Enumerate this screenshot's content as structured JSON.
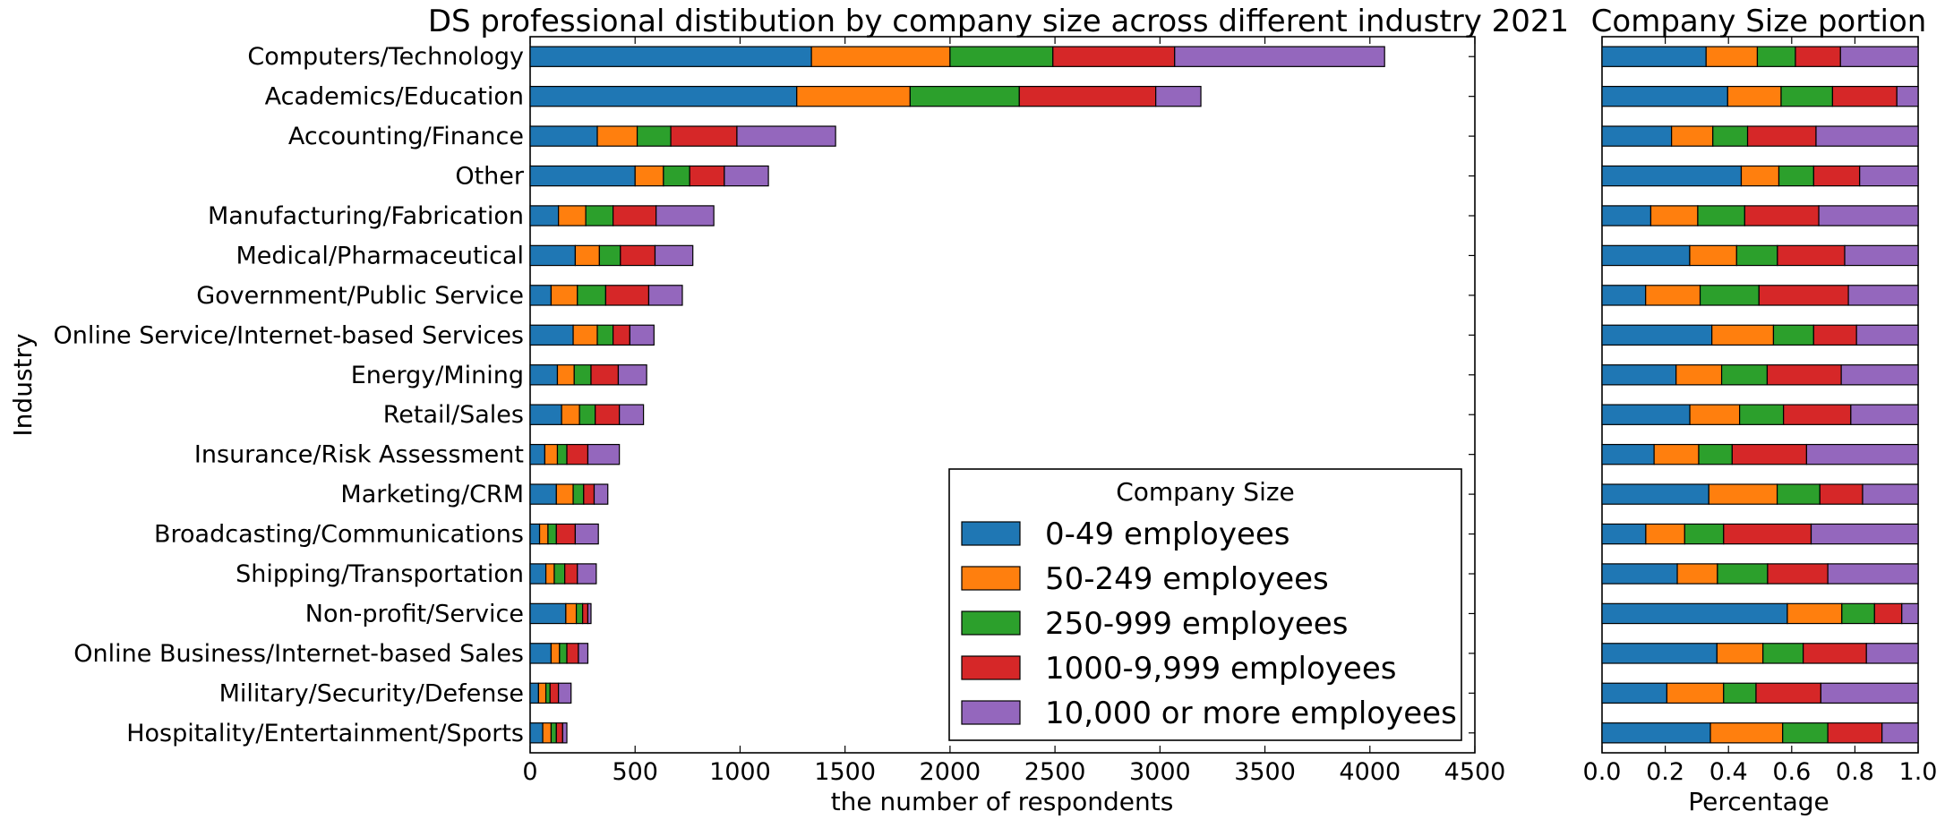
{
  "chart_data": [
    {
      "type": "bar",
      "orientation": "horizontal",
      "stacked": true,
      "title": "DS professional distibution by company size across different industry 2021",
      "xlabel": "the number of respondents",
      "ylabel": "Industry",
      "xlim": [
        0,
        4500
      ],
      "xticks": [
        "0",
        "500",
        "1000",
        "1500",
        "2000",
        "2500",
        "3000",
        "3500",
        "4000",
        "4500"
      ],
      "grid": false,
      "legend": {
        "title": "Company Size",
        "placement": "lower-right"
      },
      "categories": [
        "Computers/Technology",
        "Academics/Education",
        "Accounting/Finance",
        "Other",
        "Manufacturing/Fabrication",
        "Medical/Pharmaceutical",
        "Government/Public Service",
        "Online Service/Internet-based Services",
        "Energy/Mining",
        "Retail/Sales",
        "Insurance/Risk Assessment",
        "Marketing/CRM",
        "Broadcasting/Communications",
        "Shipping/Transportation",
        "Non-profit/Service",
        "Online Business/Internet-based Sales",
        "Military/Security/Defense",
        "Hospitality/Entertainment/Sports"
      ],
      "series": [
        {
          "name": "0-49 employees",
          "color": "#1f77b4",
          "values": [
            1340,
            1270,
            320,
            500,
            135,
            215,
            100,
            205,
            130,
            150,
            70,
            125,
            45,
            75,
            170,
            100,
            40,
            60
          ]
        },
        {
          "name": "50-249 employees",
          "color": "#ff7f0e",
          "values": [
            660,
            540,
            190,
            135,
            130,
            115,
            125,
            115,
            80,
            85,
            60,
            80,
            40,
            40,
            50,
            40,
            35,
            40
          ]
        },
        {
          "name": "250-999 employees",
          "color": "#2ca02c",
          "values": [
            490,
            520,
            160,
            125,
            130,
            100,
            135,
            75,
            80,
            75,
            45,
            50,
            40,
            50,
            30,
            35,
            20,
            25
          ]
        },
        {
          "name": "1000-9,999 employees",
          "color": "#d62728",
          "values": [
            580,
            650,
            315,
            165,
            205,
            165,
            205,
            80,
            130,
            115,
            100,
            50,
            90,
            60,
            25,
            55,
            40,
            30
          ]
        },
        {
          "name": "10,000 or more employees",
          "color": "#9467bd",
          "values": [
            1000,
            215,
            470,
            210,
            275,
            180,
            160,
            115,
            135,
            115,
            150,
            65,
            110,
            90,
            15,
            45,
            60,
            20
          ]
        }
      ]
    },
    {
      "type": "bar",
      "orientation": "horizontal",
      "stacked": true,
      "normalized": true,
      "title": "Company Size portion",
      "xlabel": "Percentage",
      "ylabel": "",
      "xlim": [
        0,
        1
      ],
      "xticks": [
        "0.0",
        "0.2",
        "0.4",
        "0.6",
        "0.8",
        "1.0"
      ],
      "grid": false,
      "show_category_labels": false
    }
  ]
}
